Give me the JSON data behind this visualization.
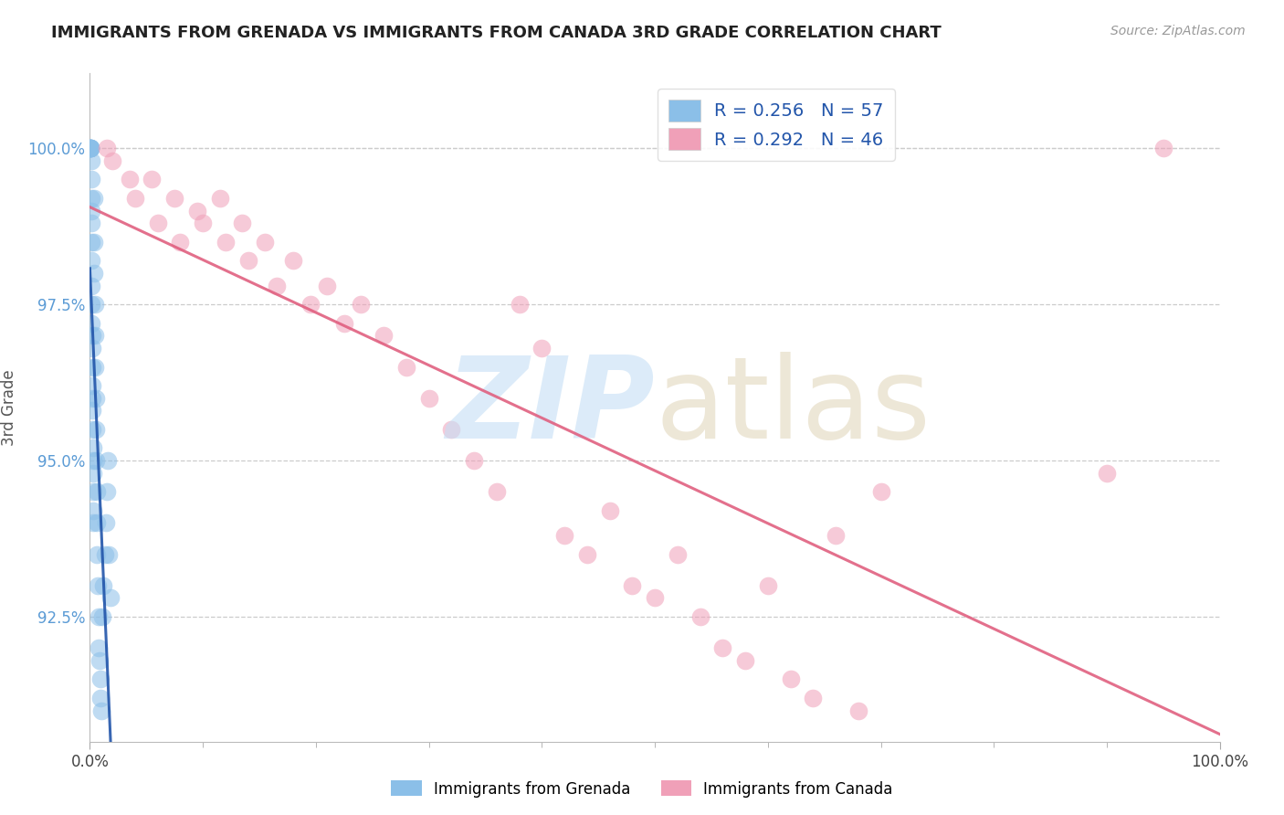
{
  "title": "IMMIGRANTS FROM GRENADA VS IMMIGRANTS FROM CANADA 3RD GRADE CORRELATION CHART",
  "source": "Source: ZipAtlas.com",
  "ylabel": "3rd Grade",
  "xlim": [
    0.0,
    100.0
  ],
  "ylim": [
    90.5,
    101.2
  ],
  "yticks": [
    92.5,
    95.0,
    97.5,
    100.0
  ],
  "ytick_labels": [
    "92.5%",
    "95.0%",
    "97.5%",
    "100.0%"
  ],
  "xtick_labels": [
    "0.0%",
    "100.0%"
  ],
  "xticks": [
    0.0,
    100.0
  ],
  "legend_labels": [
    "Immigrants from Grenada",
    "Immigrants from Canada"
  ],
  "R_grenada": 0.256,
  "N_grenada": 57,
  "R_canada": 0.292,
  "N_canada": 46,
  "color_grenada": "#8bbfe8",
  "color_canada": "#f0a0b8",
  "trendline_color_grenada": "#2255aa",
  "trendline_color_canada": "#e06080",
  "grenada_x": [
    0.05,
    0.05,
    0.05,
    0.05,
    0.08,
    0.08,
    0.08,
    0.1,
    0.1,
    0.1,
    0.1,
    0.12,
    0.12,
    0.12,
    0.15,
    0.15,
    0.15,
    0.18,
    0.18,
    0.2,
    0.2,
    0.2,
    0.22,
    0.22,
    0.25,
    0.25,
    0.28,
    0.28,
    0.3,
    0.3,
    0.35,
    0.35,
    0.4,
    0.42,
    0.45,
    0.48,
    0.5,
    0.52,
    0.55,
    0.58,
    0.62,
    0.65,
    0.7,
    0.75,
    0.8,
    0.85,
    0.9,
    0.95,
    1.0,
    1.1,
    1.2,
    1.3,
    1.4,
    1.5,
    1.6,
    1.7,
    1.8
  ],
  "grenada_y": [
    100.0,
    100.0,
    100.0,
    100.0,
    100.0,
    100.0,
    100.0,
    99.8,
    99.5,
    99.2,
    99.0,
    98.8,
    98.5,
    98.2,
    97.8,
    97.5,
    97.2,
    97.0,
    96.8,
    96.5,
    96.2,
    96.0,
    95.8,
    95.5,
    95.2,
    95.0,
    94.8,
    94.5,
    94.2,
    94.0,
    99.2,
    98.5,
    98.0,
    97.5,
    97.0,
    96.5,
    96.0,
    95.5,
    95.0,
    94.5,
    94.0,
    93.5,
    93.0,
    92.5,
    92.0,
    91.8,
    91.5,
    91.2,
    91.0,
    92.5,
    93.0,
    93.5,
    94.0,
    94.5,
    95.0,
    93.5,
    92.8
  ],
  "canada_x": [
    1.5,
    2.0,
    3.5,
    4.0,
    5.5,
    6.0,
    7.5,
    8.0,
    9.5,
    10.0,
    11.5,
    12.0,
    13.5,
    14.0,
    15.5,
    16.5,
    18.0,
    19.5,
    21.0,
    22.5,
    24.0,
    26.0,
    28.0,
    30.0,
    32.0,
    34.0,
    36.0,
    38.0,
    40.0,
    42.0,
    44.0,
    46.0,
    48.0,
    50.0,
    52.0,
    54.0,
    56.0,
    58.0,
    60.0,
    62.0,
    64.0,
    66.0,
    68.0,
    70.0,
    90.0,
    95.0
  ],
  "canada_y": [
    100.0,
    99.8,
    99.5,
    99.2,
    99.5,
    98.8,
    99.2,
    98.5,
    99.0,
    98.8,
    99.2,
    98.5,
    98.8,
    98.2,
    98.5,
    97.8,
    98.2,
    97.5,
    97.8,
    97.2,
    97.5,
    97.0,
    96.5,
    96.0,
    95.5,
    95.0,
    94.5,
    97.5,
    96.8,
    93.8,
    93.5,
    94.2,
    93.0,
    92.8,
    93.5,
    92.5,
    92.0,
    91.8,
    93.0,
    91.5,
    91.2,
    93.8,
    91.0,
    94.5,
    94.8,
    100.0
  ]
}
